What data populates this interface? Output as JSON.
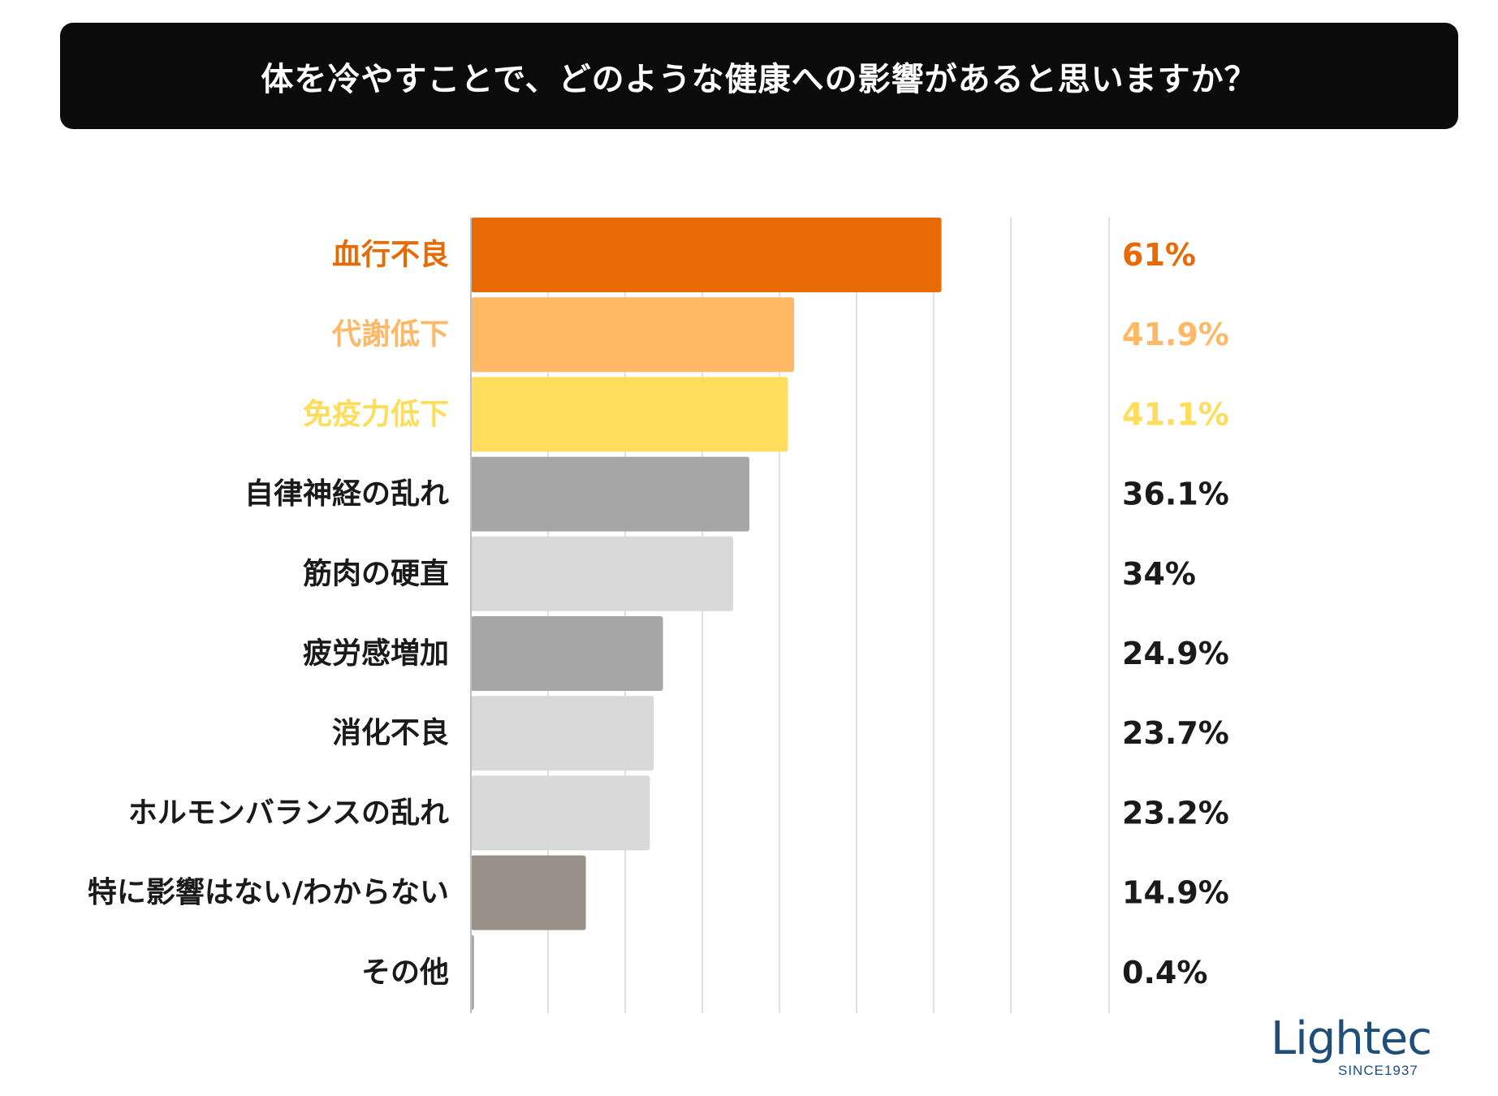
{
  "title": "体を冷やすことで、どのような健康への影響があると思いますか？",
  "colors": {
    "title_bg": "#0b0b0b",
    "grid": "#d6d6d6",
    "brand": "#1f4f79"
  },
  "chart_data": {
    "type": "bar",
    "orientation": "horizontal",
    "title": "体を冷やすことで、どのような健康への影響があると思いますか？",
    "xlim": [
      0,
      70
    ],
    "grid": true,
    "categories": [
      "血行不良",
      "代謝低下",
      "免疫力低下",
      "自律神経の乱れ",
      "筋肉の硬直",
      "疲労感増加",
      "消化不良",
      "ホルモンバランスの乱れ",
      "特に影響はない/わからない",
      "その他"
    ],
    "values": [
      61,
      41.9,
      41.1,
      36.1,
      34,
      24.9,
      23.7,
      23.2,
      14.9,
      0.4
    ],
    "value_labels": [
      "61%",
      "41.9%",
      "41.1%",
      "36.1%",
      "34%",
      "24.9%",
      "23.7%",
      "23.2%",
      "14.9%",
      "0.4%"
    ],
    "bar_colors": [
      "#e86a05",
      "#ffb866",
      "#ffdd5c",
      "#a6a6a6",
      "#d9d9d9",
      "#a6a6a6",
      "#d9d9d9",
      "#d9d9d9",
      "#999089",
      "#a6a6a6"
    ],
    "label_colors": [
      "#e86a05",
      "#ffb866",
      "#ffdd5c",
      "#1a1a1a",
      "#1a1a1a",
      "#1a1a1a",
      "#1a1a1a",
      "#1a1a1a",
      "#1a1a1a",
      "#1a1a1a"
    ]
  },
  "logo": {
    "name": "Lightec",
    "tagline": "SINCE1937"
  }
}
